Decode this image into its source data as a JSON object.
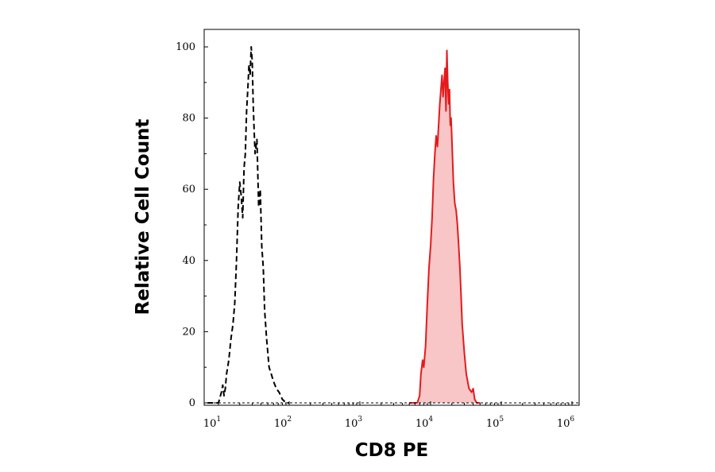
{
  "chart_data": {
    "type": "area",
    "xlabel": "CD8 PE",
    "ylabel": "Relative Cell Count",
    "xscale": "log",
    "xlim": [
      5,
      1000000
    ],
    "ylim": [
      0,
      100
    ],
    "x_ticks": [
      {
        "value": 10,
        "base": "10",
        "exp": "1"
      },
      {
        "value": 100,
        "base": "10",
        "exp": "2"
      },
      {
        "value": 1000,
        "base": "10",
        "exp": "3"
      },
      {
        "value": 10000,
        "base": "10",
        "exp": "4"
      },
      {
        "value": 100000,
        "base": "10",
        "exp": "5"
      },
      {
        "value": 1000000,
        "base": "10",
        "exp": "6"
      }
    ],
    "y_ticks": [
      "0",
      "20",
      "40",
      "60",
      "80",
      "100"
    ],
    "grid": false,
    "legend": "none",
    "series": [
      {
        "style": "dashed-outline",
        "color": "#000000",
        "x": [
          7,
          10,
          11,
          11.5,
          12,
          12.5,
          13,
          14,
          15,
          16,
          17,
          18,
          19,
          20,
          21,
          22,
          23,
          24,
          25,
          26,
          27,
          28,
          29,
          30,
          31,
          32,
          33,
          35,
          37,
          39,
          41,
          43,
          45,
          48,
          52,
          56,
          60,
          66,
          72,
          80,
          90,
          100
        ],
        "y": [
          0,
          0,
          3,
          5,
          2,
          4,
          8,
          12,
          18,
          22,
          28,
          40,
          55,
          62,
          58,
          52,
          66,
          70,
          82,
          88,
          95,
          92,
          100,
          96,
          84,
          76,
          70,
          74,
          55,
          60,
          44,
          38,
          26,
          18,
          10,
          8,
          6,
          4,
          3,
          1,
          0,
          0
        ]
      },
      {
        "style": "filled",
        "color": "#e41a1c",
        "fill": "#f8c6c6",
        "x": [
          5000,
          6500,
          7000,
          7300,
          7700,
          8000,
          8500,
          9000,
          9500,
          10000,
          10500,
          11000,
          11500,
          12000,
          12500,
          13000,
          13500,
          14000,
          14500,
          15000,
          15500,
          16000,
          16500,
          17000,
          17500,
          18000,
          18500,
          19000,
          19500,
          20000,
          21000,
          22000,
          23000,
          24000,
          25000,
          26000,
          27000,
          28000,
          30000,
          32000,
          35000,
          38000,
          40000,
          42000,
          45000,
          50000
        ],
        "y": [
          0,
          0,
          2,
          8,
          12,
          10,
          16,
          28,
          38,
          44,
          52,
          63,
          70,
          75,
          72,
          78,
          84,
          88,
          92,
          86,
          90,
          94,
          82,
          99,
          90,
          84,
          88,
          78,
          80,
          74,
          62,
          56,
          54,
          50,
          44,
          38,
          30,
          22,
          14,
          8,
          4,
          3,
          4,
          1,
          0,
          0
        ]
      }
    ]
  }
}
